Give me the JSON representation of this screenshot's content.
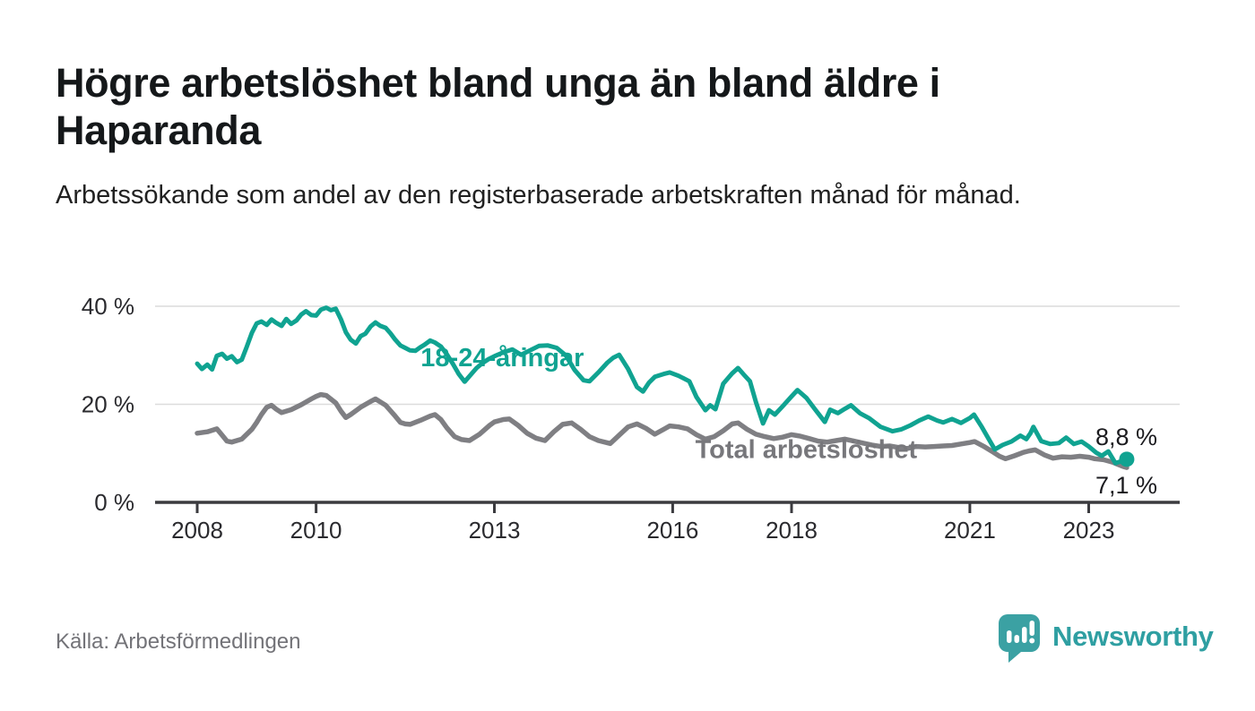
{
  "header": {
    "title": "Högre arbetslöshet bland unga än bland äldre i Haparanda",
    "subtitle": "Arbetssökande som andel av den registerbaserade arbetskraften månad för månad."
  },
  "footer": {
    "source": "Källa: Arbetsförmedlingen",
    "brand": "Newsworthy"
  },
  "colors": {
    "young_line": "#10a391",
    "total_line": "#7f7f83",
    "total_label": "#77777b",
    "annotation_text": "#1b1b1f",
    "axis": "#3b3b3f",
    "grid": "#dcdcdc",
    "tick_text": "#2a2a2e",
    "brand_teal": "#3ba1a3"
  },
  "chart_data": {
    "type": "line",
    "y_unit": "%",
    "ylim": [
      0,
      43
    ],
    "xlim": [
      2007.3,
      2024.5
    ],
    "grid": "horizontal",
    "y_ticks": [
      {
        "value": 0,
        "label": "0 %"
      },
      {
        "value": 20,
        "label": "20 %"
      },
      {
        "value": 40,
        "label": "40 %"
      }
    ],
    "x_ticks": [
      {
        "value": 2008,
        "label": "2008"
      },
      {
        "value": 2010,
        "label": "2010"
      },
      {
        "value": 2013,
        "label": "2013"
      },
      {
        "value": 2016,
        "label": "2016"
      },
      {
        "value": 2018,
        "label": "2018"
      },
      {
        "value": 2021,
        "label": "2021"
      },
      {
        "value": 2023,
        "label": "2023"
      }
    ],
    "annotations": [
      {
        "text": "8,8 %",
        "series": "18-24-åringar",
        "x": 2023.64,
        "y": 8.8,
        "position": "above-end"
      },
      {
        "text": "7,1 %",
        "series": "Total arbetslöshet",
        "x": 2023.64,
        "y": 7.1,
        "position": "below-end"
      }
    ],
    "series": [
      {
        "name": "Total arbetslöshet",
        "color": "#7f7f83",
        "label_at": [
          2016.38,
          9.0
        ],
        "label_color": "#77777b",
        "end_dot": false,
        "points": [
          [
            2008.0,
            14.1
          ],
          [
            2008.17,
            14.4
          ],
          [
            2008.33,
            15.0
          ],
          [
            2008.42,
            13.7
          ],
          [
            2008.5,
            12.5
          ],
          [
            2008.58,
            12.3
          ],
          [
            2008.75,
            12.9
          ],
          [
            2008.92,
            14.9
          ],
          [
            2009.0,
            16.3
          ],
          [
            2009.08,
            17.9
          ],
          [
            2009.17,
            19.4
          ],
          [
            2009.25,
            19.8
          ],
          [
            2009.33,
            19.0
          ],
          [
            2009.42,
            18.3
          ],
          [
            2009.58,
            18.9
          ],
          [
            2009.75,
            19.9
          ],
          [
            2009.92,
            21.1
          ],
          [
            2010.0,
            21.6
          ],
          [
            2010.08,
            22.0
          ],
          [
            2010.17,
            21.8
          ],
          [
            2010.33,
            20.3
          ],
          [
            2010.42,
            18.6
          ],
          [
            2010.5,
            17.3
          ],
          [
            2010.58,
            17.9
          ],
          [
            2010.75,
            19.4
          ],
          [
            2010.92,
            20.6
          ],
          [
            2011.0,
            21.1
          ],
          [
            2011.08,
            20.5
          ],
          [
            2011.17,
            19.8
          ],
          [
            2011.33,
            17.6
          ],
          [
            2011.42,
            16.3
          ],
          [
            2011.5,
            16.0
          ],
          [
            2011.58,
            15.9
          ],
          [
            2011.75,
            16.7
          ],
          [
            2011.92,
            17.6
          ],
          [
            2012.0,
            17.9
          ],
          [
            2012.1,
            16.9
          ],
          [
            2012.2,
            15.2
          ],
          [
            2012.33,
            13.4
          ],
          [
            2012.45,
            12.8
          ],
          [
            2012.58,
            12.6
          ],
          [
            2012.75,
            13.9
          ],
          [
            2012.92,
            15.7
          ],
          [
            2013.0,
            16.4
          ],
          [
            2013.15,
            16.9
          ],
          [
            2013.25,
            17.0
          ],
          [
            2013.4,
            15.7
          ],
          [
            2013.55,
            14.1
          ],
          [
            2013.7,
            13.1
          ],
          [
            2013.85,
            12.6
          ],
          [
            2014.0,
            14.4
          ],
          [
            2014.15,
            15.9
          ],
          [
            2014.3,
            16.2
          ],
          [
            2014.45,
            14.9
          ],
          [
            2014.6,
            13.4
          ],
          [
            2014.75,
            12.6
          ],
          [
            2014.95,
            12.0
          ],
          [
            2015.1,
            13.7
          ],
          [
            2015.25,
            15.4
          ],
          [
            2015.4,
            16.0
          ],
          [
            2015.55,
            15.1
          ],
          [
            2015.7,
            13.9
          ],
          [
            2015.85,
            14.9
          ],
          [
            2015.95,
            15.6
          ],
          [
            2016.1,
            15.4
          ],
          [
            2016.25,
            15.0
          ],
          [
            2016.4,
            13.8
          ],
          [
            2016.55,
            12.9
          ],
          [
            2016.7,
            13.4
          ],
          [
            2016.85,
            14.6
          ],
          [
            2017.0,
            16.0
          ],
          [
            2017.1,
            16.2
          ],
          [
            2017.25,
            14.9
          ],
          [
            2017.4,
            13.9
          ],
          [
            2017.55,
            13.4
          ],
          [
            2017.7,
            13.0
          ],
          [
            2017.85,
            13.3
          ],
          [
            2018.0,
            13.8
          ],
          [
            2018.15,
            13.5
          ],
          [
            2018.3,
            13.0
          ],
          [
            2018.45,
            12.5
          ],
          [
            2018.6,
            12.3
          ],
          [
            2018.75,
            12.6
          ],
          [
            2018.9,
            12.9
          ],
          [
            2019.05,
            12.5
          ],
          [
            2019.2,
            12.1
          ],
          [
            2019.35,
            11.7
          ],
          [
            2019.5,
            11.4
          ],
          [
            2019.65,
            11.5
          ],
          [
            2019.8,
            11.2
          ],
          [
            2019.95,
            11.0
          ],
          [
            2020.1,
            11.4
          ],
          [
            2020.25,
            11.3
          ],
          [
            2020.4,
            11.4
          ],
          [
            2020.55,
            11.5
          ],
          [
            2020.7,
            11.6
          ],
          [
            2020.85,
            11.9
          ],
          [
            2021.0,
            12.2
          ],
          [
            2021.08,
            12.4
          ],
          [
            2021.25,
            11.3
          ],
          [
            2021.4,
            10.2
          ],
          [
            2021.5,
            9.4
          ],
          [
            2021.6,
            8.9
          ],
          [
            2021.75,
            9.5
          ],
          [
            2021.9,
            10.2
          ],
          [
            2022.0,
            10.5
          ],
          [
            2022.1,
            10.7
          ],
          [
            2022.25,
            9.7
          ],
          [
            2022.4,
            9.0
          ],
          [
            2022.55,
            9.3
          ],
          [
            2022.7,
            9.2
          ],
          [
            2022.85,
            9.4
          ],
          [
            2023.0,
            9.2
          ],
          [
            2023.1,
            8.9
          ],
          [
            2023.25,
            8.7
          ],
          [
            2023.4,
            8.2
          ],
          [
            2023.5,
            7.7
          ],
          [
            2023.58,
            7.3
          ],
          [
            2023.64,
            7.1
          ]
        ]
      },
      {
        "name": "18-24-åringar",
        "color": "#10a391",
        "label_at": [
          2011.76,
          27.8
        ],
        "label_color": "#10a391",
        "end_dot": true,
        "points": [
          [
            2008.0,
            28.3
          ],
          [
            2008.08,
            27.2
          ],
          [
            2008.17,
            28.1
          ],
          [
            2008.25,
            27.1
          ],
          [
            2008.33,
            29.9
          ],
          [
            2008.42,
            30.3
          ],
          [
            2008.5,
            29.3
          ],
          [
            2008.58,
            29.8
          ],
          [
            2008.67,
            28.6
          ],
          [
            2008.75,
            29.1
          ],
          [
            2008.83,
            31.6
          ],
          [
            2008.92,
            34.6
          ],
          [
            2009.0,
            36.5
          ],
          [
            2009.08,
            36.9
          ],
          [
            2009.17,
            36.2
          ],
          [
            2009.25,
            37.3
          ],
          [
            2009.33,
            36.6
          ],
          [
            2009.42,
            36.0
          ],
          [
            2009.5,
            37.4
          ],
          [
            2009.58,
            36.4
          ],
          [
            2009.67,
            37.1
          ],
          [
            2009.75,
            38.3
          ],
          [
            2009.83,
            39.0
          ],
          [
            2009.92,
            38.2
          ],
          [
            2010.0,
            38.1
          ],
          [
            2010.08,
            39.3
          ],
          [
            2010.17,
            39.7
          ],
          [
            2010.25,
            39.2
          ],
          [
            2010.33,
            39.5
          ],
          [
            2010.42,
            37.3
          ],
          [
            2010.5,
            34.7
          ],
          [
            2010.58,
            33.2
          ],
          [
            2010.67,
            32.4
          ],
          [
            2010.75,
            33.9
          ],
          [
            2010.83,
            34.4
          ],
          [
            2010.92,
            35.9
          ],
          [
            2011.0,
            36.7
          ],
          [
            2011.08,
            36.0
          ],
          [
            2011.17,
            35.6
          ],
          [
            2011.25,
            34.5
          ],
          [
            2011.33,
            33.2
          ],
          [
            2011.42,
            32.0
          ],
          [
            2011.5,
            31.5
          ],
          [
            2011.58,
            31.0
          ],
          [
            2011.67,
            30.9
          ],
          [
            2011.75,
            31.6
          ],
          [
            2011.83,
            32.2
          ],
          [
            2011.92,
            33.0
          ],
          [
            2012.0,
            32.6
          ],
          [
            2012.1,
            31.8
          ],
          [
            2012.2,
            30.2
          ],
          [
            2012.3,
            28.3
          ],
          [
            2012.4,
            26.2
          ],
          [
            2012.5,
            24.6
          ],
          [
            2012.6,
            26.0
          ],
          [
            2012.7,
            27.4
          ],
          [
            2012.8,
            28.4
          ],
          [
            2012.9,
            29.2
          ],
          [
            2013.0,
            29.8
          ],
          [
            2013.15,
            30.6
          ],
          [
            2013.3,
            31.2
          ],
          [
            2013.45,
            30.1
          ],
          [
            2013.6,
            31.0
          ],
          [
            2013.75,
            31.9
          ],
          [
            2013.9,
            32.0
          ],
          [
            2014.05,
            31.5
          ],
          [
            2014.2,
            30.0
          ],
          [
            2014.35,
            27.0
          ],
          [
            2014.5,
            24.9
          ],
          [
            2014.6,
            24.7
          ],
          [
            2014.75,
            26.5
          ],
          [
            2014.9,
            28.5
          ],
          [
            2015.0,
            29.5
          ],
          [
            2015.1,
            30.1
          ],
          [
            2015.25,
            27.2
          ],
          [
            2015.4,
            23.5
          ],
          [
            2015.5,
            22.6
          ],
          [
            2015.6,
            24.4
          ],
          [
            2015.7,
            25.6
          ],
          [
            2015.85,
            26.2
          ],
          [
            2015.95,
            26.5
          ],
          [
            2016.1,
            25.8
          ],
          [
            2016.28,
            24.7
          ],
          [
            2016.4,
            21.5
          ],
          [
            2016.55,
            18.8
          ],
          [
            2016.63,
            19.8
          ],
          [
            2016.72,
            19.0
          ],
          [
            2016.85,
            24.2
          ],
          [
            2017.0,
            26.3
          ],
          [
            2017.1,
            27.4
          ],
          [
            2017.2,
            26.0
          ],
          [
            2017.3,
            24.7
          ],
          [
            2017.4,
            20.5
          ],
          [
            2017.52,
            16.1
          ],
          [
            2017.62,
            18.8
          ],
          [
            2017.72,
            17.9
          ],
          [
            2017.85,
            19.6
          ],
          [
            2018.0,
            21.6
          ],
          [
            2018.1,
            22.9
          ],
          [
            2018.25,
            21.3
          ],
          [
            2018.4,
            18.9
          ],
          [
            2018.56,
            16.4
          ],
          [
            2018.65,
            18.9
          ],
          [
            2018.78,
            18.2
          ],
          [
            2018.9,
            19.1
          ],
          [
            2019.0,
            19.8
          ],
          [
            2019.15,
            18.2
          ],
          [
            2019.3,
            17.2
          ],
          [
            2019.5,
            15.4
          ],
          [
            2019.7,
            14.5
          ],
          [
            2019.85,
            14.9
          ],
          [
            2020.0,
            15.7
          ],
          [
            2020.15,
            16.7
          ],
          [
            2020.3,
            17.5
          ],
          [
            2020.45,
            16.7
          ],
          [
            2020.55,
            16.3
          ],
          [
            2020.7,
            17.0
          ],
          [
            2020.85,
            16.2
          ],
          [
            2021.0,
            17.2
          ],
          [
            2021.07,
            17.9
          ],
          [
            2021.2,
            15.4
          ],
          [
            2021.3,
            13.3
          ],
          [
            2021.42,
            10.8
          ],
          [
            2021.55,
            11.7
          ],
          [
            2021.7,
            12.4
          ],
          [
            2021.85,
            13.6
          ],
          [
            2021.95,
            12.9
          ],
          [
            2022.02,
            14.1
          ],
          [
            2022.07,
            15.4
          ],
          [
            2022.2,
            12.5
          ],
          [
            2022.35,
            11.9
          ],
          [
            2022.5,
            12.1
          ],
          [
            2022.62,
            13.2
          ],
          [
            2022.75,
            11.9
          ],
          [
            2022.88,
            12.4
          ],
          [
            2023.0,
            11.4
          ],
          [
            2023.13,
            10.1
          ],
          [
            2023.22,
            9.5
          ],
          [
            2023.33,
            10.4
          ],
          [
            2023.45,
            8.0
          ],
          [
            2023.55,
            8.4
          ],
          [
            2023.64,
            8.8
          ]
        ]
      }
    ]
  }
}
